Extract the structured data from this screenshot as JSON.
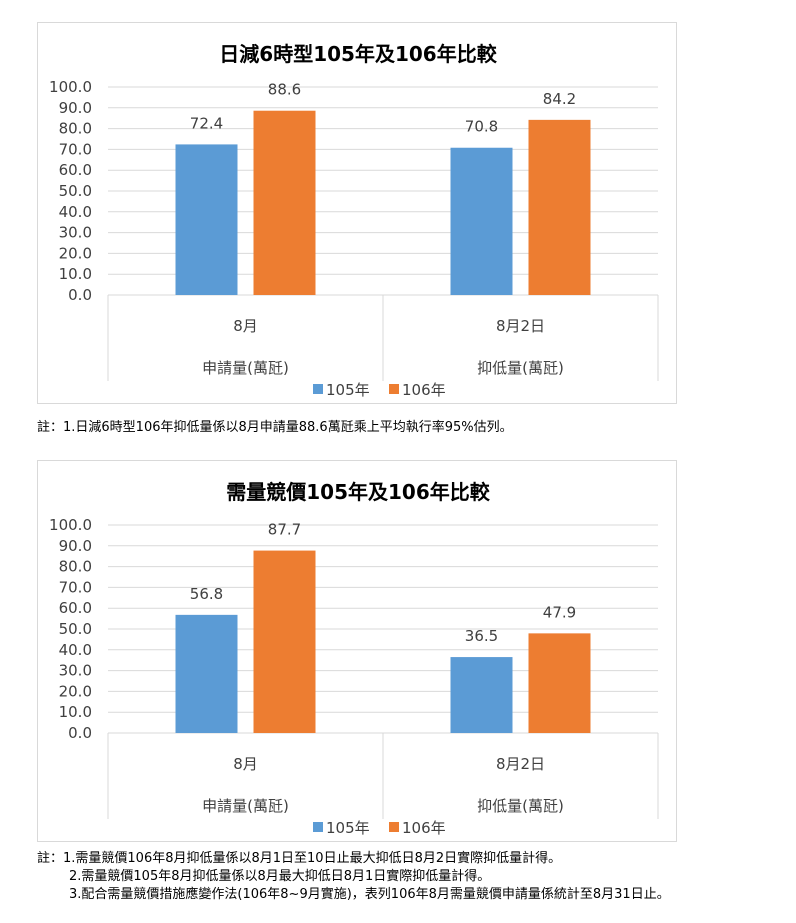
{
  "chart_data": [
    {
      "type": "bar",
      "title": "日減6時型105年及106年比較",
      "ylim": [
        0,
        100
      ],
      "yticks": [
        "0.0",
        "10.0",
        "20.0",
        "30.0",
        "40.0",
        "50.0",
        "60.0",
        "70.0",
        "80.0",
        "90.0",
        "100.0"
      ],
      "categories": [
        {
          "sub": "8月",
          "group": "申請量(萬瓩)"
        },
        {
          "sub": "8月2日",
          "group": "抑低量(萬瓩)"
        }
      ],
      "series": [
        {
          "name": "105年",
          "color": "#5b9bd5",
          "values": [
            72.4,
            70.8
          ]
        },
        {
          "name": "106年",
          "color": "#ed7d31",
          "values": [
            88.6,
            84.2
          ]
        }
      ],
      "grid": true,
      "legend": "bottom"
    },
    {
      "type": "bar",
      "title": "需量競價105年及106年比較",
      "ylim": [
        0,
        100
      ],
      "yticks": [
        "0.0",
        "10.0",
        "20.0",
        "30.0",
        "40.0",
        "50.0",
        "60.0",
        "70.0",
        "80.0",
        "90.0",
        "100.0"
      ],
      "categories": [
        {
          "sub": "8月",
          "group": "申請量(萬瓩)"
        },
        {
          "sub": "8月2日",
          "group": "抑低量(萬瓩)"
        }
      ],
      "series": [
        {
          "name": "105年",
          "color": "#5b9bd5",
          "values": [
            56.8,
            36.5
          ]
        },
        {
          "name": "106年",
          "color": "#ed7d31",
          "values": [
            87.7,
            47.9
          ]
        }
      ],
      "grid": true,
      "legend": "bottom"
    }
  ],
  "notes1": [
    "註：1.日減6時型106年抑低量係以8月申請量88.6萬瓩乘上平均執行率95%估列。"
  ],
  "notes2": [
    "註：1.需量競價106年8月抑低量係以8月1日至10日止最大抑低日8月2日實際抑低量計得。",
    "2.需量競價105年8月抑低量係以8月最大抑低日8月1日實際抑低量計得。",
    "3.配合需量競價措施應變作法(106年8~9月實施)，表列106年8月需量競價申請量係統計至8月31日止。"
  ]
}
